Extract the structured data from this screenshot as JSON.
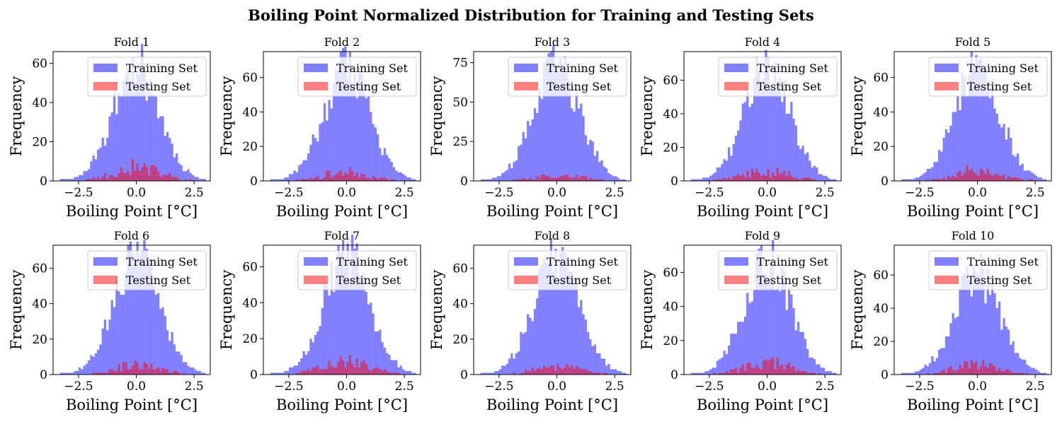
{
  "figure": {
    "title": "Boiling Point Normalized Distribution for Training and Testing Sets"
  },
  "colors": {
    "training": "#0000ff",
    "testing": "#ff0000",
    "alpha": 0.5
  },
  "chart_data": {
    "type": "bar",
    "layout_grid": "2x5",
    "shared": {
      "xlabel": "Boiling Point [°C]",
      "ylabel": "Frequency",
      "xticks": [
        -2.5,
        0.0,
        2.5
      ],
      "xtick_labels": [
        "−2.5",
        "0.0",
        "2.5"
      ],
      "legend_placement": "top-right",
      "legend": [
        "Training Set",
        "Testing Set"
      ],
      "grid": false,
      "bins": {
        "start": -3.5,
        "width": 0.1,
        "count": 65
      }
    },
    "panels": [
      {
        "title": "Fold 1",
        "xlim": [
          -3.6,
          3.2
        ],
        "ylim": [
          0,
          66
        ],
        "yticks": [
          0,
          20,
          40,
          60
        ],
        "peak": 62,
        "test_peak": 9,
        "seed": 11
      },
      {
        "title": "Fold 2",
        "xlim": [
          -3.6,
          3.2
        ],
        "ylim": [
          0,
          75
        ],
        "yticks": [
          0,
          20,
          40,
          60
        ],
        "peak": 68,
        "test_peak": 7,
        "seed": 23
      },
      {
        "title": "Fold 3",
        "xlim": [
          -3.6,
          3.2
        ],
        "ylim": [
          0,
          82
        ],
        "yticks": [
          0,
          25,
          50,
          75
        ],
        "peak": 76,
        "test_peak": 5,
        "seed": 37
      },
      {
        "title": "Fold 4",
        "xlim": [
          -3.6,
          3.2
        ],
        "ylim": [
          0,
          77
        ],
        "yticks": [
          0,
          20,
          40,
          60
        ],
        "peak": 70,
        "test_peak": 8,
        "seed": 41
      },
      {
        "title": "Fold 5",
        "xlim": [
          -3.6,
          3.2
        ],
        "ylim": [
          0,
          75
        ],
        "yticks": [
          0,
          20,
          40,
          60
        ],
        "peak": 68,
        "test_peak": 8,
        "seed": 53
      },
      {
        "title": "Fold 6",
        "xlim": [
          -3.6,
          3.2
        ],
        "ylim": [
          0,
          73
        ],
        "yticks": [
          0,
          20,
          40,
          60
        ],
        "peak": 70,
        "test_peak": 7,
        "seed": 67
      },
      {
        "title": "Fold 7",
        "xlim": [
          -3.6,
          3.2
        ],
        "ylim": [
          0,
          72
        ],
        "yticks": [
          0,
          20,
          40,
          60
        ],
        "peak": 69,
        "test_peak": 11,
        "seed": 79
      },
      {
        "title": "Fold 8",
        "xlim": [
          -3.6,
          3.2
        ],
        "ylim": [
          0,
          73
        ],
        "yticks": [
          0,
          20,
          40,
          60
        ],
        "peak": 70,
        "test_peak": 6,
        "seed": 83
      },
      {
        "title": "Fold 9",
        "xlim": [
          -3.6,
          3.2
        ],
        "ylim": [
          0,
          76
        ],
        "yticks": [
          0,
          20,
          40,
          60
        ],
        "peak": 72,
        "test_peak": 9,
        "seed": 97
      },
      {
        "title": "Fold 10",
        "xlim": [
          -3.6,
          3.2
        ],
        "ylim": [
          0,
          78
        ],
        "yticks": [
          0,
          20,
          40,
          60
        ],
        "peak": 64,
        "test_peak": 8,
        "seed": 101
      }
    ]
  }
}
